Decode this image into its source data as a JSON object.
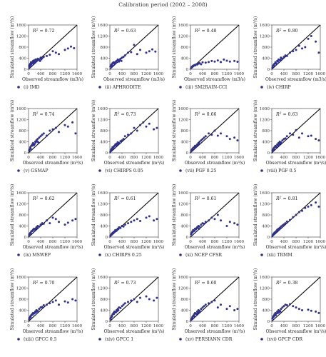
{
  "figure_title": "Calibration period (2002 – 2008)",
  "colors": {
    "point": "#2e3192",
    "line": "#000000",
    "axis": "#333333"
  },
  "axis_text": {
    "xlabel": "Observed streamflow (m3/s)",
    "xlabel_sup": "Observed streamflow (m³/s)",
    "ylabel": "Simulated streamflow (m³/s)",
    "ticks": [
      "0",
      "400",
      "800",
      "1200",
      "1600"
    ]
  },
  "chart_data": [
    {
      "type": "scatter",
      "label": "(i) IMD",
      "r2": "= 0.72",
      "xlim": [
        0,
        1600
      ],
      "ylim": [
        0,
        1600
      ],
      "x": [
        20,
        40,
        60,
        80,
        100,
        120,
        150,
        180,
        200,
        230,
        260,
        300,
        350,
        400,
        450,
        500,
        600,
        700,
        800,
        900,
        1000,
        1200,
        1300,
        1400,
        1500,
        30,
        70,
        90,
        140,
        170,
        210,
        250,
        280,
        320,
        380,
        420
      ],
      "y": [
        120,
        160,
        200,
        250,
        220,
        260,
        300,
        320,
        280,
        350,
        330,
        380,
        360,
        420,
        400,
        450,
        480,
        520,
        650,
        600,
        550,
        700,
        750,
        820,
        760,
        80,
        140,
        180,
        210,
        260,
        240,
        290,
        310,
        340,
        300,
        360
      ]
    },
    {
      "type": "scatter",
      "label": "(ii) APHRODITE",
      "r2": "= 0.63",
      "xlim": [
        0,
        1600
      ],
      "ylim": [
        0,
        1600
      ],
      "x": [
        20,
        40,
        60,
        90,
        120,
        150,
        180,
        220,
        260,
        300,
        350,
        400,
        450,
        500,
        600,
        700,
        800,
        900,
        1000,
        1200,
        1300,
        1400,
        1500,
        50,
        100,
        160,
        200,
        280,
        330,
        380
      ],
      "y": [
        100,
        150,
        180,
        220,
        250,
        200,
        260,
        300,
        350,
        280,
        380,
        420,
        450,
        500,
        600,
        620,
        880,
        550,
        700,
        600,
        650,
        720,
        640,
        80,
        130,
        210,
        240,
        320,
        340,
        300
      ]
    },
    {
      "type": "scatter",
      "label": "(iii) SM2RAIN-CCI",
      "r2": "= 0.48",
      "xlim": [
        0,
        1600
      ],
      "ylim": [
        0,
        1600
      ],
      "x": [
        20,
        40,
        60,
        80,
        100,
        130,
        160,
        200,
        250,
        300,
        350,
        400,
        500,
        600,
        700,
        800,
        900,
        1000,
        1100,
        1200,
        1300,
        1450,
        1550,
        50,
        90,
        150,
        220,
        280
      ],
      "y": [
        50,
        80,
        100,
        120,
        130,
        150,
        160,
        180,
        200,
        220,
        180,
        250,
        240,
        260,
        300,
        280,
        320,
        260,
        350,
        310,
        280,
        300,
        270,
        70,
        110,
        140,
        170,
        210
      ]
    },
    {
      "type": "scatter",
      "label": "(iv) CHIRP",
      "r2": "= 0.80",
      "xlim": [
        0,
        1600
      ],
      "ylim": [
        0,
        1600
      ],
      "x": [
        20,
        40,
        60,
        90,
        120,
        150,
        180,
        220,
        260,
        300,
        350,
        400,
        450,
        500,
        600,
        700,
        800,
        900,
        1000,
        1100,
        1200,
        1300,
        1450,
        1550,
        70,
        130,
        200,
        280,
        330
      ],
      "y": [
        60,
        120,
        160,
        200,
        250,
        200,
        300,
        350,
        330,
        420,
        380,
        450,
        500,
        480,
        600,
        650,
        700,
        850,
        750,
        800,
        1100,
        1200,
        1000,
        600,
        140,
        230,
        280,
        340,
        390
      ]
    },
    {
      "type": "scatter",
      "label": "(v) GSMAP",
      "r2": "= 0.74",
      "xlim": [
        0,
        1600
      ],
      "ylim": [
        0,
        1600
      ],
      "x": [
        20,
        40,
        60,
        90,
        120,
        150,
        180,
        220,
        260,
        300,
        350,
        400,
        450,
        500,
        600,
        700,
        800,
        900,
        1000,
        1200,
        1300,
        1450,
        1550,
        70,
        130,
        200,
        240,
        280,
        320
      ],
      "y": [
        80,
        130,
        200,
        250,
        300,
        350,
        280,
        400,
        450,
        500,
        550,
        600,
        650,
        700,
        620,
        800,
        850,
        900,
        750,
        1000,
        950,
        1100,
        700,
        150,
        260,
        320,
        380,
        420,
        380
      ]
    },
    {
      "type": "scatter",
      "label": "(vi) CHIRPS 0.05",
      "r2": "= 0.73",
      "xlim": [
        0,
        1600
      ],
      "ylim": [
        0,
        1600
      ],
      "x": [
        20,
        40,
        60,
        90,
        120,
        150,
        180,
        220,
        260,
        300,
        350,
        400,
        450,
        500,
        600,
        700,
        800,
        900,
        1000,
        1100,
        1200,
        1300,
        1450,
        1550,
        70,
        130,
        200,
        240,
        280
      ],
      "y": [
        50,
        100,
        150,
        200,
        180,
        250,
        300,
        330,
        380,
        350,
        420,
        450,
        500,
        600,
        650,
        700,
        900,
        800,
        1000,
        1100,
        950,
        1050,
        850,
        900,
        120,
        220,
        260,
        300,
        340
      ]
    },
    {
      "type": "scatter",
      "label": "(vii) PGF 0.25",
      "r2": "= 0.66",
      "xlim": [
        0,
        1600
      ],
      "ylim": [
        0,
        1600
      ],
      "x": [
        20,
        40,
        60,
        90,
        120,
        150,
        180,
        220,
        260,
        300,
        350,
        400,
        450,
        500,
        600,
        700,
        800,
        900,
        1000,
        1200,
        1300,
        1450,
        1550,
        70,
        130,
        200,
        240,
        280
      ],
      "y": [
        60,
        100,
        140,
        180,
        200,
        250,
        220,
        300,
        350,
        400,
        450,
        500,
        550,
        600,
        700,
        650,
        800,
        620,
        700,
        600,
        500,
        550,
        450,
        120,
        180,
        260,
        300,
        330
      ]
    },
    {
      "type": "scatter",
      "label": "(viii) PGF 0.5",
      "r2": "= 0.63",
      "xlim": [
        0,
        1600
      ],
      "ylim": [
        0,
        1600
      ],
      "x": [
        20,
        40,
        60,
        90,
        120,
        150,
        180,
        220,
        260,
        300,
        350,
        400,
        450,
        500,
        600,
        700,
        800,
        900,
        1000,
        1200,
        1300,
        1450,
        1550,
        70,
        130,
        200,
        240,
        280
      ],
      "y": [
        80,
        120,
        160,
        200,
        250,
        220,
        300,
        350,
        400,
        380,
        450,
        500,
        520,
        600,
        700,
        650,
        820,
        550,
        700,
        600,
        620,
        500,
        450,
        130,
        210,
        270,
        310,
        340
      ]
    },
    {
      "type": "scatter",
      "label": "(ix) MSWEP",
      "r2": "= 0.62",
      "xlim": [
        0,
        1600
      ],
      "ylim": [
        0,
        1600
      ],
      "x": [
        20,
        40,
        60,
        90,
        120,
        150,
        180,
        220,
        260,
        300,
        350,
        400,
        450,
        500,
        600,
        700,
        800,
        900,
        1000,
        1200,
        1300,
        1450,
        1550,
        70,
        130,
        200,
        240,
        280
      ],
      "y": [
        70,
        120,
        150,
        200,
        230,
        260,
        300,
        280,
        350,
        400,
        380,
        450,
        500,
        480,
        600,
        500,
        700,
        650,
        550,
        450,
        520,
        600,
        650,
        130,
        220,
        270,
        310,
        330
      ]
    },
    {
      "type": "scatter",
      "label": "(x) CHIRPS 0.25",
      "r2": "= 0.61",
      "xlim": [
        0,
        1600
      ],
      "ylim": [
        0,
        1600
      ],
      "x": [
        20,
        40,
        60,
        90,
        120,
        150,
        180,
        220,
        260,
        300,
        350,
        400,
        450,
        500,
        600,
        700,
        800,
        900,
        1000,
        1200,
        1300,
        1450,
        1550,
        70,
        130,
        200,
        240,
        280
      ],
      "y": [
        50,
        80,
        120,
        150,
        180,
        200,
        250,
        230,
        300,
        350,
        330,
        400,
        380,
        450,
        500,
        550,
        600,
        650,
        580,
        700,
        750,
        600,
        650,
        100,
        170,
        220,
        260,
        290
      ]
    },
    {
      "type": "scatter",
      "label": "(xi) NCEP CFSR",
      "r2": "= 0.61",
      "xlim": [
        0,
        1600
      ],
      "ylim": [
        0,
        1600
      ],
      "x": [
        20,
        40,
        60,
        90,
        120,
        150,
        180,
        220,
        260,
        300,
        350,
        400,
        450,
        500,
        600,
        700,
        800,
        900,
        1000,
        1200,
        1300,
        1450,
        1550,
        70,
        130,
        200,
        240,
        280
      ],
      "y": [
        100,
        150,
        200,
        250,
        220,
        300,
        280,
        350,
        400,
        380,
        450,
        500,
        480,
        550,
        600,
        700,
        650,
        800,
        600,
        400,
        550,
        500,
        450,
        180,
        230,
        320,
        340,
        300
      ]
    },
    {
      "type": "scatter",
      "label": "(xii) TRMM",
      "r2": "= 0.81",
      "xlim": [
        0,
        1600
      ],
      "ylim": [
        0,
        1600
      ],
      "x": [
        20,
        40,
        60,
        90,
        120,
        150,
        180,
        220,
        260,
        300,
        350,
        400,
        450,
        500,
        600,
        700,
        800,
        900,
        1000,
        1100,
        1200,
        1300,
        1450,
        1550,
        70,
        130,
        200,
        240,
        280
      ],
      "y": [
        40,
        80,
        120,
        160,
        180,
        220,
        260,
        300,
        330,
        380,
        420,
        460,
        500,
        560,
        620,
        720,
        800,
        900,
        950,
        1050,
        1100,
        1150,
        1250,
        1100,
        110,
        170,
        240,
        280,
        310
      ]
    },
    {
      "type": "scatter",
      "label": "(xiii) GPCC 0.5",
      "r2": "= 0.70",
      "xlim": [
        0,
        1600
      ],
      "ylim": [
        0,
        1600
      ],
      "x": [
        20,
        40,
        60,
        90,
        120,
        150,
        180,
        220,
        260,
        300,
        350,
        400,
        450,
        500,
        600,
        700,
        800,
        900,
        1000,
        1200,
        1300,
        1450,
        1550,
        70,
        130,
        200,
        240,
        280
      ],
      "y": [
        80,
        130,
        180,
        220,
        260,
        300,
        280,
        350,
        400,
        380,
        450,
        500,
        520,
        580,
        600,
        650,
        700,
        750,
        600,
        720,
        680,
        800,
        750,
        150,
        240,
        300,
        330,
        360
      ]
    },
    {
      "type": "scatter",
      "label": "(xiv) GPCC 1",
      "r2": "= 0.73",
      "xlim": [
        0,
        1600
      ],
      "ylim": [
        0,
        1600
      ],
      "x": [
        20,
        40,
        60,
        90,
        120,
        150,
        180,
        220,
        260,
        300,
        350,
        400,
        450,
        500,
        600,
        700,
        800,
        900,
        1000,
        1200,
        1300,
        1450,
        1550,
        70,
        130,
        200,
        240,
        280
      ],
      "y": [
        90,
        140,
        200,
        250,
        300,
        350,
        320,
        400,
        450,
        500,
        480,
        550,
        600,
        650,
        700,
        750,
        800,
        700,
        850,
        900,
        800,
        750,
        850,
        170,
        260,
        330,
        370,
        400
      ]
    },
    {
      "type": "scatter",
      "label": "(xv) PERSIANN CDR",
      "r2": "= 0.60",
      "xlim": [
        0,
        1600
      ],
      "ylim": [
        0,
        1600
      ],
      "x": [
        20,
        40,
        60,
        90,
        120,
        150,
        180,
        220,
        260,
        300,
        350,
        400,
        450,
        500,
        600,
        700,
        800,
        900,
        1000,
        1200,
        1300,
        1450,
        1550,
        70,
        130,
        200,
        240,
        280
      ],
      "y": [
        60,
        100,
        150,
        200,
        250,
        300,
        280,
        350,
        400,
        380,
        450,
        500,
        550,
        600,
        650,
        700,
        750,
        500,
        600,
        450,
        550,
        400,
        450,
        120,
        180,
        260,
        300,
        330
      ]
    },
    {
      "type": "scatter",
      "label": "(xvi) GPCP CDR",
      "r2": "= 0.38",
      "xlim": [
        0,
        1600
      ],
      "ylim": [
        0,
        1600
      ],
      "x": [
        20,
        40,
        60,
        90,
        120,
        150,
        180,
        220,
        260,
        300,
        350,
        400,
        450,
        500,
        600,
        700,
        800,
        900,
        1000,
        1200,
        1300,
        1450,
        1550,
        70,
        130,
        200,
        240,
        280
      ],
      "y": [
        100,
        150,
        200,
        250,
        300,
        280,
        350,
        400,
        380,
        450,
        500,
        550,
        600,
        580,
        620,
        550,
        500,
        450,
        400,
        420,
        380,
        350,
        300,
        170,
        220,
        300,
        330,
        360
      ]
    }
  ]
}
